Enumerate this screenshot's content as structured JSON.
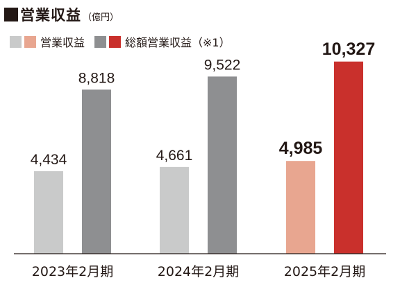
{
  "title": "営業収益",
  "unit": "（億円）",
  "legend": [
    {
      "label": "営業収益",
      "colors": [
        "#c9caca",
        "#e8a690"
      ]
    },
    {
      "label": "総額営業収益（※1）",
      "colors": [
        "#8e8f91",
        "#c9302c"
      ]
    }
  ],
  "chart_data": {
    "type": "bar",
    "categories": [
      "2023年2月期",
      "2024年2月期",
      "2025年2月期"
    ],
    "series": [
      {
        "name": "営業収益",
        "values": [
          4434,
          4661,
          4985
        ],
        "labels": [
          "4,434",
          "4,661",
          "4,985"
        ],
        "colors": [
          "#c9caca",
          "#c9caca",
          "#e8a690"
        ]
      },
      {
        "name": "総額営業収益（※1）",
        "values": [
          8818,
          9522,
          10327
        ],
        "labels": [
          "8,818",
          "9,522",
          "10,327"
        ],
        "colors": [
          "#8e8f91",
          "#8e8f91",
          "#c9302c"
        ]
      }
    ],
    "highlight_category_index": 2,
    "ylim": [
      0,
      11250
    ],
    "grid": false,
    "legend_position": "top-left"
  }
}
